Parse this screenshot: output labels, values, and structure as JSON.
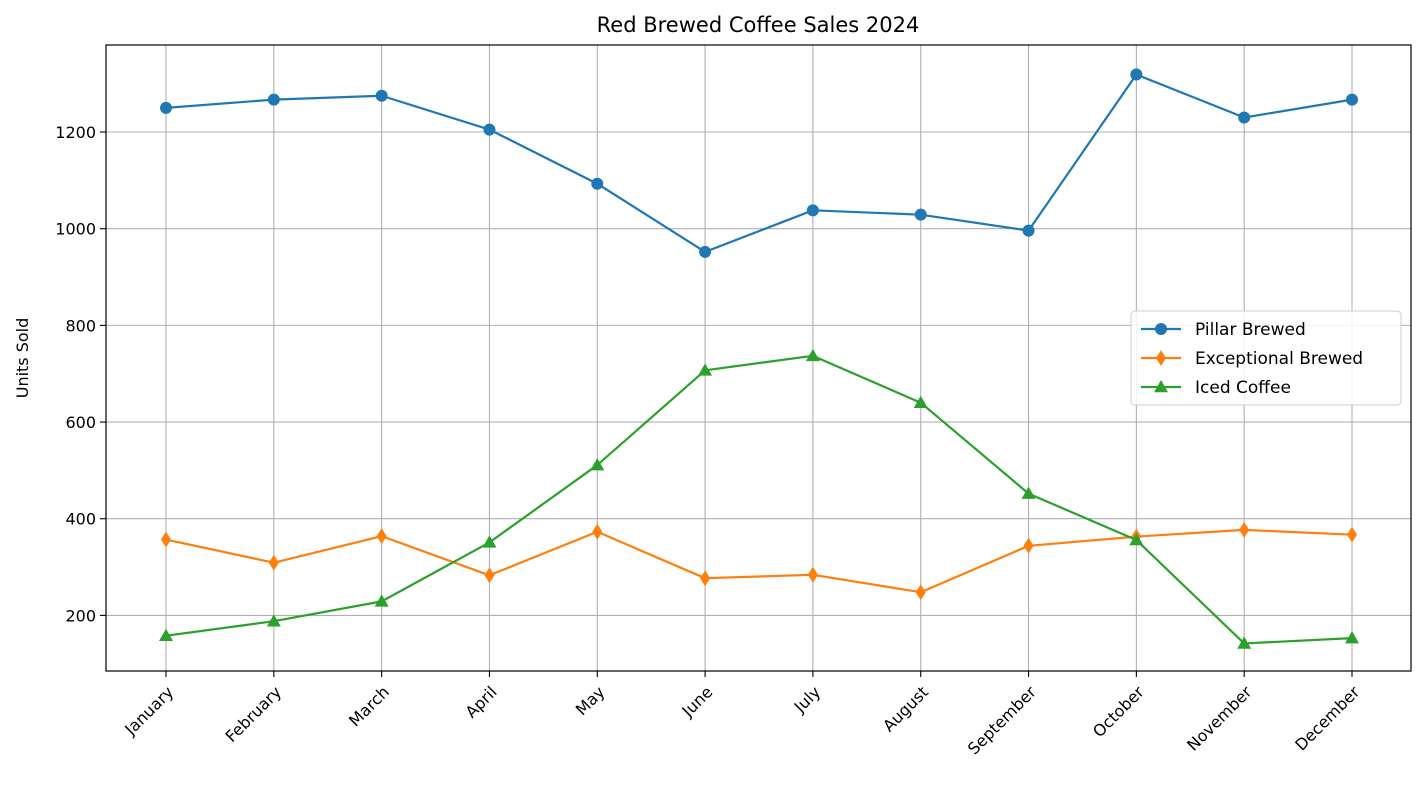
{
  "chart_data": {
    "type": "line",
    "title": "Red Brewed Coffee Sales 2024",
    "xlabel": "",
    "ylabel": "Units Sold",
    "categories": [
      "January",
      "February",
      "March",
      "April",
      "May",
      "June",
      "July",
      "August",
      "September",
      "October",
      "November",
      "December"
    ],
    "ylim": [
      85,
      1380
    ],
    "yticks": [
      200,
      400,
      600,
      800,
      1000,
      1200
    ],
    "grid": true,
    "legend_position": "center-right",
    "series": [
      {
        "name": "Pillar Brewed",
        "color": "#1f77b4",
        "marker": "circle",
        "values": [
          1250,
          1267,
          1275,
          1205,
          1093,
          952,
          1038,
          1029,
          996,
          1319,
          1230,
          1267
        ]
      },
      {
        "name": "Exceptional Brewed",
        "color": "#ff7f0e",
        "marker": "diamond",
        "values": [
          357,
          309,
          364,
          283,
          373,
          277,
          284,
          248,
          344,
          363,
          377,
          367
        ]
      },
      {
        "name": "Iced Coffee",
        "color": "#2ca02c",
        "marker": "triangle",
        "values": [
          158,
          188,
          229,
          351,
          511,
          707,
          737,
          640,
          452,
          356,
          142,
          153
        ]
      }
    ]
  }
}
